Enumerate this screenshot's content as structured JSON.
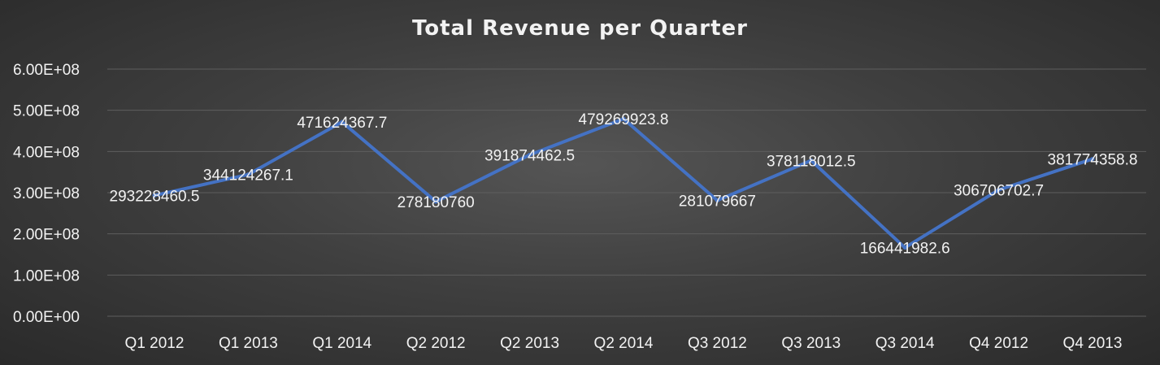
{
  "chart_data": {
    "type": "line",
    "title": "Total Revenue per Quarter",
    "xlabel": "",
    "ylabel": "",
    "categories": [
      "Q1 2012",
      "Q1 2013",
      "Q1 2014",
      "Q2 2012",
      "Q2 2013",
      "Q2 2014",
      "Q3 2012",
      "Q3 2013",
      "Q3 2014",
      "Q4 2012",
      "Q4 2013"
    ],
    "series": [
      {
        "values": [
          293228460.5,
          344124267.1,
          471624367.7,
          278180760,
          391874462.5,
          479269923.8,
          281079667,
          378118012.5,
          166441982.6,
          306706702.7,
          381774358.8
        ],
        "data_labels": [
          "293228460.5",
          "344124267.1",
          "471624367.7",
          "278180760",
          "391874462.5",
          "479269923.8",
          "281079667",
          "378118012.5",
          "166441982.6",
          "306706702.7",
          "381774358.8"
        ],
        "color": "#4472c4"
      }
    ],
    "yticks": [
      "0.00E+00",
      "1.00E+08",
      "2.00E+08",
      "3.00E+08",
      "4.00E+08",
      "5.00E+08",
      "6.00E+08"
    ],
    "ylim": [
      0,
      600000000
    ],
    "grid": true,
    "legend": "none",
    "colors": {
      "background": "#404040",
      "text": "#f2f2f2",
      "gridline": "#5e5e5e",
      "line": "#4472c4"
    }
  }
}
